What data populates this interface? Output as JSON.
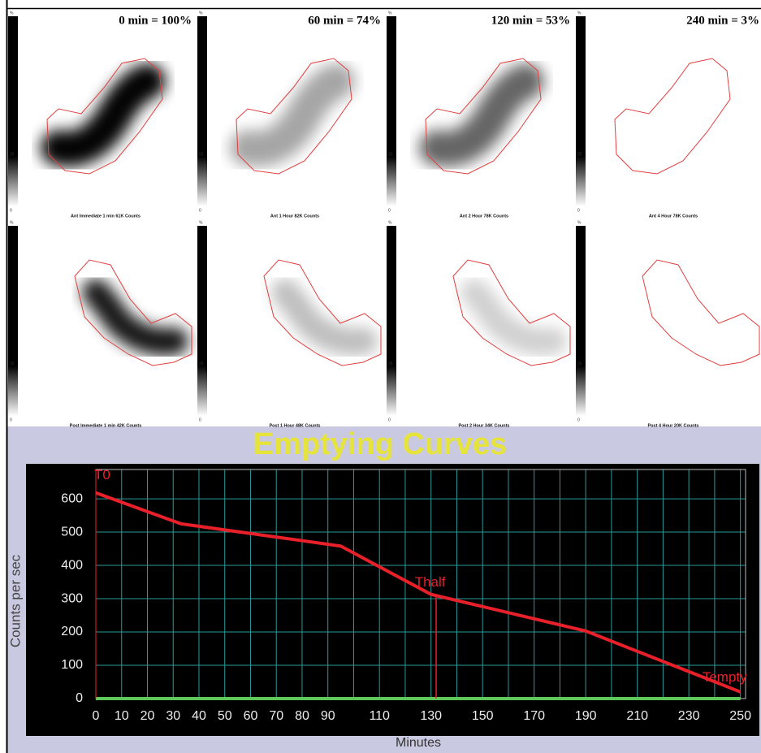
{
  "panels": {
    "headers": [
      "0 min = 100%",
      "60 min = 74%",
      "120 min = 53%",
      "240 min = 3%"
    ],
    "colorbar_labels": [
      "%",
      "25",
      "0"
    ],
    "captions": [
      [
        "Ant Immediate 1 min 61K Counts",
        "Ant 1 Hour 82K Counts",
        "Ant 2 Hour 78K Counts",
        "Ant 4 Hour 78K Counts"
      ],
      [
        "Post Immediate 1 min 42K Counts",
        "Post 1 Hour 48K Counts",
        "Post 2 Hour 34K Counts",
        "Post 4 Hour 20K Counts"
      ]
    ]
  },
  "chart_data": {
    "type": "line",
    "title": "Emptying Curves",
    "x_label": "Minutes",
    "y_label": "Counts per sec",
    "xlim": [
      0,
      252
    ],
    "ylim": [
      0,
      688
    ],
    "xticks": [
      0,
      10,
      20,
      30,
      40,
      50,
      60,
      70,
      80,
      90,
      {
        "value": 100,
        "label": null
      },
      110,
      {
        "value": 120,
        "label": null
      },
      130,
      {
        "value": 140,
        "label": null
      },
      150,
      {
        "value": 160,
        "label": null
      },
      170,
      {
        "value": 180,
        "label": null
      },
      190,
      {
        "value": 200,
        "label": null
      },
      210,
      {
        "value": 220,
        "label": null
      },
      230,
      {
        "value": 240,
        "label": null
      },
      250
    ],
    "yticks": [
      0,
      100,
      200,
      300,
      400,
      500,
      600
    ],
    "grid": true,
    "series": [
      {
        "color": "#e8202a",
        "x": [
          0,
          33,
          95,
          130,
          190,
          250
        ],
        "values": [
          618,
          525,
          458,
          313,
          203,
          20
        ]
      },
      {
        "color": "#5ec85a",
        "x": [
          0,
          250
        ],
        "values": [
          0,
          0
        ]
      }
    ],
    "marker_line": {
      "x": 132,
      "y": 313,
      "color": "#e8202a"
    },
    "annotations": [
      {
        "label": "T0",
        "x": 0,
        "y": 670
      },
      {
        "label": "Thalf",
        "x": 130,
        "y": 348
      },
      {
        "label": "Tempty",
        "x": 250,
        "y": 62
      }
    ]
  }
}
